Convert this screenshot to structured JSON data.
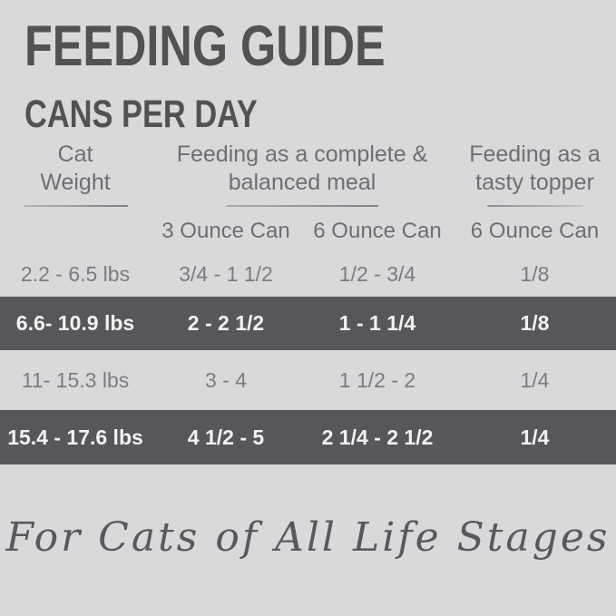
{
  "header": {
    "title": "FEEDING GUIDE",
    "subtitle": "CANS PER DAY"
  },
  "table": {
    "col_headers": {
      "weight": {
        "line1": "Cat",
        "line2": "Weight"
      },
      "meal": {
        "line1": "Feeding as a complete &",
        "line2": "balanced meal"
      },
      "topper": {
        "line1": "Feeding as a",
        "line2": "tasty topper"
      }
    },
    "sub_headers": [
      "3 Ounce Can",
      "6 Ounce Can",
      "6 Ounce Can"
    ],
    "rows": [
      {
        "highlight": false,
        "cells": [
          "2.2 - 6.5 lbs",
          "3/4 - 1 1/2",
          "1/2 - 3/4",
          "1/8"
        ]
      },
      {
        "highlight": true,
        "cells": [
          "6.6- 10.9 lbs",
          "2 - 2 1/2",
          "1 - 1 1/4",
          "1/8"
        ]
      },
      {
        "highlight": false,
        "cells": [
          "11- 15.3 lbs",
          "3 - 4",
          "1 1/2 - 2",
          "1/4"
        ]
      },
      {
        "highlight": true,
        "cells": [
          "15.4 - 17.6 lbs",
          "4 1/2 - 5",
          "2 1/4 - 2 1/2",
          "1/4"
        ]
      }
    ]
  },
  "footer": {
    "tagline": "For Cats of All Life Stages"
  },
  "colors": {
    "background": "#d8d9da",
    "title_text": "#515254",
    "header_text": "#6e6f72",
    "body_text": "#7b7c7f",
    "band_background": "#56575a",
    "band_text": "#f2f2f3"
  }
}
